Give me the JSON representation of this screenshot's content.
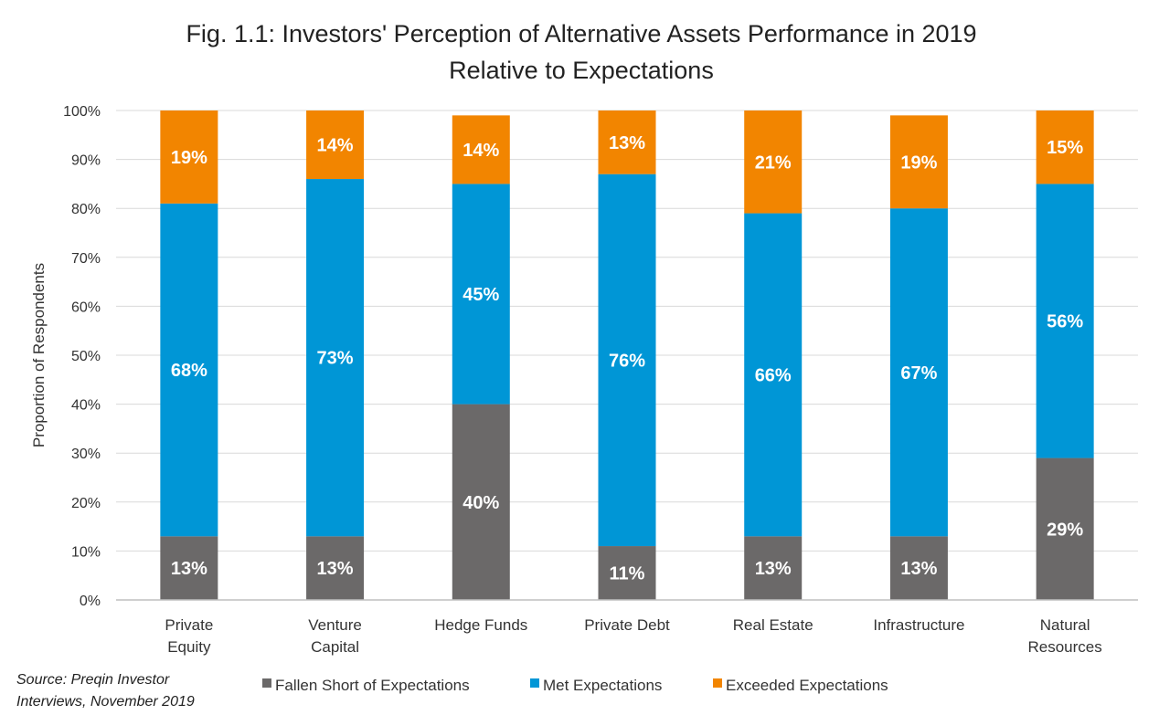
{
  "chart_data": {
    "type": "bar",
    "stacked": true,
    "title": "Fig. 1.1: Investors' Perception of Alternative Assets Performance in 2019",
    "title_line2": "Relative to Expectations",
    "ylabel": "Proportion of Respondents",
    "xlabel": "",
    "ylim": [
      0,
      100
    ],
    "yticks": [
      0,
      10,
      20,
      30,
      40,
      50,
      60,
      70,
      80,
      90,
      100
    ],
    "ytick_labels": [
      "0%",
      "10%",
      "20%",
      "30%",
      "40%",
      "50%",
      "60%",
      "70%",
      "80%",
      "90%",
      "100%"
    ],
    "grid": true,
    "legend_position": "bottom",
    "categories": [
      [
        "Private",
        "Equity"
      ],
      [
        "Venture",
        "Capital"
      ],
      [
        "Hedge Funds"
      ],
      [
        "Private Debt"
      ],
      [
        "Real Estate"
      ],
      [
        "Infrastructure"
      ],
      [
        "Natural",
        "Resources"
      ]
    ],
    "series": [
      {
        "name": "Fallen Short of Expectations",
        "color": "#6b6969",
        "values": [
          13,
          13,
          40,
          11,
          13,
          13,
          29
        ],
        "labels": [
          "13%",
          "13%",
          "40%",
          "11%",
          "13%",
          "13%",
          "29%"
        ]
      },
      {
        "name": "Met Expectations",
        "color": "#0096d6",
        "values": [
          68,
          73,
          45,
          76,
          66,
          67,
          56
        ],
        "labels": [
          "68%",
          "73%",
          "45%",
          "76%",
          "66%",
          "67%",
          "56%"
        ]
      },
      {
        "name": "Exceeded Expectations",
        "color": "#f28500",
        "values": [
          19,
          14,
          14,
          13,
          21,
          19,
          15
        ],
        "labels": [
          "19%",
          "14%",
          "14%",
          "13%",
          "21%",
          "19%",
          "15%"
        ]
      }
    ]
  },
  "source": {
    "line1": "Source: Preqin Investor",
    "line2": "Interviews, November 2019"
  }
}
